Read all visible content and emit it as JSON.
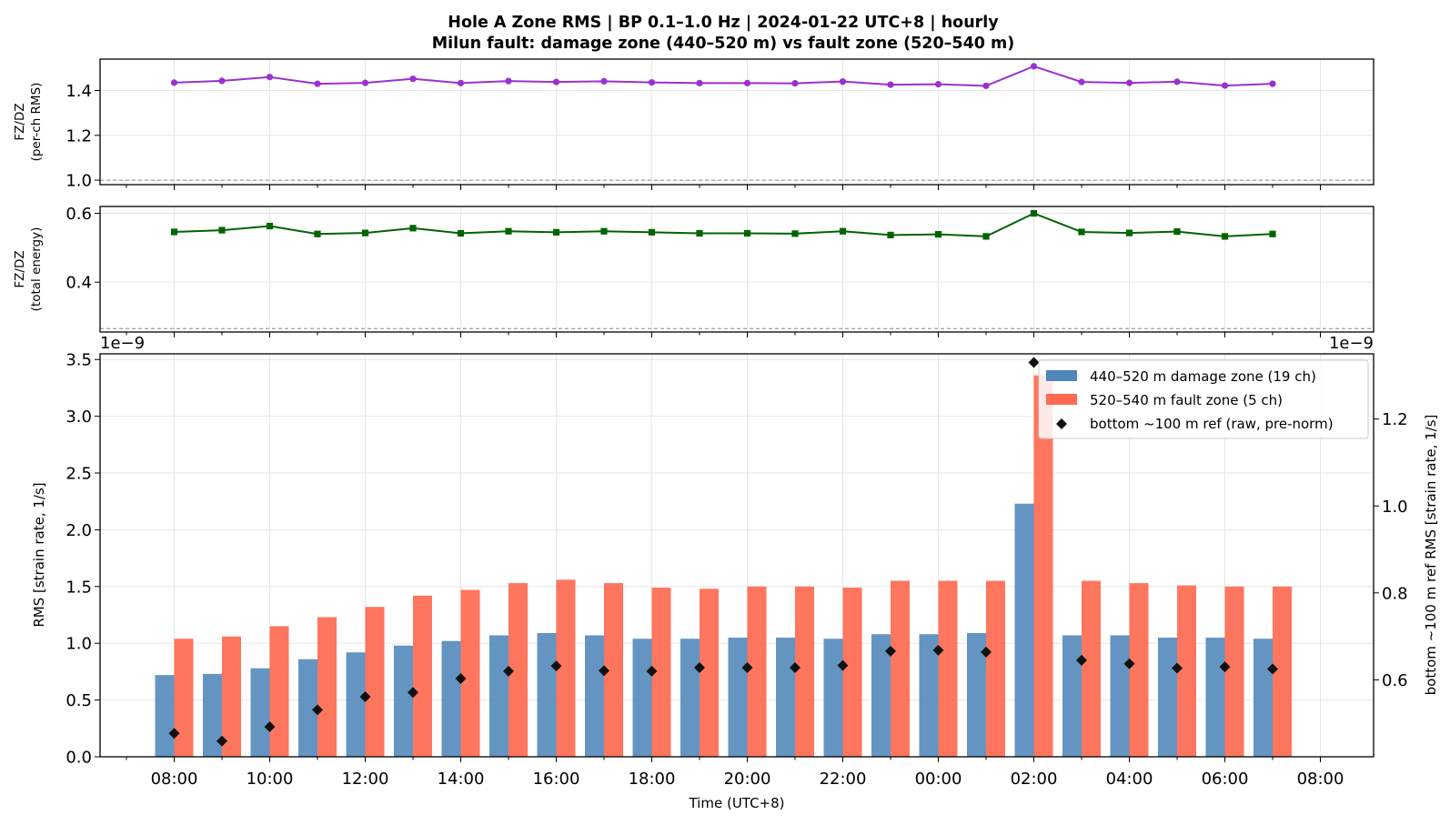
{
  "title_line1": "Hole A Zone RMS  |  BP 0.1–1.0 Hz  |  2024-01-22 UTC+8  |  hourly",
  "title_line2": "Milun fault: damage zone (440–520 m) vs fault zone (520–540 m)",
  "colors": {
    "damage": "#4f86b9",
    "fault": "#ff6a50",
    "ref": "#111111",
    "ratio_rms": "#9b30d0",
    "ratio_energy": "#006400"
  },
  "chart_data": [
    {
      "type": "line",
      "ylabel_line1": "FZ/DZ",
      "ylabel_line2": "(per-ch RMS)",
      "yticks": [
        "1.0",
        "1.2",
        "1.4"
      ],
      "ylim": [
        0.98,
        1.54
      ],
      "reference_line": 1.0,
      "grid": true,
      "series": [
        {
          "values": [
            1.435,
            1.443,
            1.46,
            1.43,
            1.434,
            1.452,
            1.433,
            1.442,
            1.438,
            1.441,
            1.436,
            1.433,
            1.433,
            1.432,
            1.44,
            1.426,
            1.428,
            1.421,
            1.508,
            1.438,
            1.434,
            1.439,
            1.422,
            1.43
          ]
        }
      ]
    },
    {
      "type": "line",
      "ylabel_line1": "FZ/DZ",
      "ylabel_line2": "(total energy)",
      "yticks": [
        "0.4",
        "0.6"
      ],
      "ylim": [
        0.255,
        0.62
      ],
      "reference_line": 0.265,
      "grid": true,
      "series": [
        {
          "values": [
            0.546,
            0.551,
            0.563,
            0.54,
            0.543,
            0.557,
            0.542,
            0.548,
            0.545,
            0.548,
            0.545,
            0.542,
            0.542,
            0.541,
            0.548,
            0.537,
            0.539,
            0.533,
            0.6,
            0.546,
            0.543,
            0.547,
            0.533,
            0.54
          ]
        }
      ]
    },
    {
      "type": "bar",
      "scale_left": "1e−9",
      "scale_right": "1e−9",
      "xlabel": "Time (UTC+8)",
      "ylabel": "RMS  [strain rate, 1/s]",
      "ylabel_right": "bottom ~100 m ref RMS  [strain rate, 1/s]",
      "xticks": [
        "08:00",
        "10:00",
        "12:00",
        "14:00",
        "16:00",
        "18:00",
        "20:00",
        "22:00",
        "00:00",
        "02:00",
        "04:00",
        "06:00",
        "08:00"
      ],
      "yticks": [
        "0.0",
        "0.5",
        "1.0",
        "1.5",
        "2.0",
        "2.5",
        "3.0",
        "3.5"
      ],
      "ylim": [
        0,
        3.55
      ],
      "yticks_right": [
        "0.6",
        "0.8",
        "1.0",
        "1.2"
      ],
      "ylim_right": [
        0.423,
        1.35
      ],
      "legend_position": "top-right",
      "grid": true,
      "x": [
        "08:00",
        "09:00",
        "10:00",
        "11:00",
        "12:00",
        "13:00",
        "14:00",
        "15:00",
        "16:00",
        "17:00",
        "18:00",
        "19:00",
        "20:00",
        "21:00",
        "22:00",
        "23:00",
        "00:00",
        "01:00",
        "02:00",
        "03:00",
        "04:00",
        "05:00",
        "06:00",
        "07:00"
      ],
      "series": [
        {
          "name": "440–520 m  damage zone (19 ch)",
          "kind": "bar",
          "axis": "left",
          "values": [
            0.72,
            0.73,
            0.78,
            0.86,
            0.92,
            0.98,
            1.02,
            1.07,
            1.09,
            1.07,
            1.04,
            1.04,
            1.05,
            1.05,
            1.04,
            1.08,
            1.08,
            1.09,
            2.23,
            1.07,
            1.07,
            1.05,
            1.05,
            1.04
          ]
        },
        {
          "name": "520–540 m  fault zone (5 ch)",
          "kind": "bar",
          "axis": "left",
          "values": [
            1.04,
            1.06,
            1.15,
            1.23,
            1.32,
            1.42,
            1.47,
            1.53,
            1.56,
            1.53,
            1.49,
            1.48,
            1.5,
            1.5,
            1.49,
            1.55,
            1.55,
            1.55,
            3.36,
            1.55,
            1.53,
            1.51,
            1.5,
            1.5
          ]
        },
        {
          "name": "bottom ~100 m ref (raw, pre-norm)",
          "kind": "marker",
          "axis": "right",
          "values": [
            0.477,
            0.459,
            0.492,
            0.531,
            0.561,
            0.571,
            0.603,
            0.62,
            0.632,
            0.621,
            0.62,
            0.628,
            0.628,
            0.628,
            0.633,
            0.666,
            0.668,
            0.664,
            1.33,
            0.645,
            0.637,
            0.627,
            0.63,
            0.625
          ]
        }
      ]
    }
  ]
}
